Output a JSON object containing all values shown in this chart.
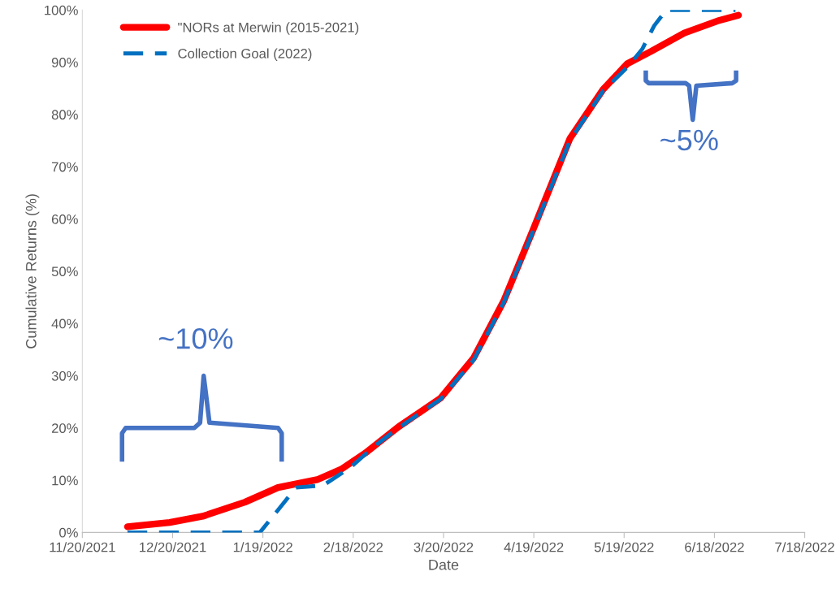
{
  "chart_data": {
    "type": "line",
    "xlabel": "Date",
    "ylabel": "Cumulative Returns (%)",
    "xlim": [
      "2021-11-20",
      "2022-07-18"
    ],
    "xticks": [
      {
        "value": "2021-11-20",
        "label": "11/20/2021"
      },
      {
        "value": "2021-12-20",
        "label": "12/20/2021"
      },
      {
        "value": "2022-01-19",
        "label": "1/19/2022"
      },
      {
        "value": "2022-02-18",
        "label": "2/18/2022"
      },
      {
        "value": "2022-03-20",
        "label": "3/20/2022"
      },
      {
        "value": "2022-04-19",
        "label": "4/19/2022"
      },
      {
        "value": "2022-05-19",
        "label": "5/19/2022"
      },
      {
        "value": "2022-06-18",
        "label": "6/18/2022"
      },
      {
        "value": "2022-07-18",
        "label": "7/18/2022"
      }
    ],
    "ylim": [
      0,
      100
    ],
    "yticks": [
      {
        "value": 0,
        "label": "0%"
      },
      {
        "value": 10,
        "label": "10%"
      },
      {
        "value": 20,
        "label": "20%"
      },
      {
        "value": 30,
        "label": "30%"
      },
      {
        "value": 40,
        "label": "40%"
      },
      {
        "value": 50,
        "label": "50%"
      },
      {
        "value": 60,
        "label": "60%"
      },
      {
        "value": 70,
        "label": "70%"
      },
      {
        "value": 80,
        "label": "80%"
      },
      {
        "value": 90,
        "label": "90%"
      },
      {
        "value": 100,
        "label": "100%"
      }
    ],
    "grid": false,
    "legend": "top left",
    "marker": "none",
    "series": [
      {
        "name": "\"NORs at Merwin (2015-2021)",
        "color": "#ff0000",
        "line_style": "solid",
        "x": [
          "2021-12-05",
          "2021-12-19",
          "2021-12-30",
          "2022-01-13",
          "2022-01-24",
          "2022-02-06",
          "2022-02-14",
          "2022-02-22",
          "2022-03-05",
          "2022-03-19",
          "2022-03-30",
          "2022-04-09",
          "2022-04-19",
          "2022-05-01",
          "2022-05-12",
          "2022-05-20",
          "2022-05-28",
          "2022-06-08",
          "2022-06-19",
          "2022-06-26"
        ],
        "values": [
          1.1,
          1.9,
          3.1,
          5.8,
          8.6,
          10.1,
          12.1,
          15.2,
          20.2,
          25.7,
          33.4,
          44.3,
          58.3,
          75.4,
          84.8,
          89.7,
          92.1,
          95.6,
          97.9,
          99
        ]
      },
      {
        "name": "Collection Goal (2022)",
        "color": "#0070c0",
        "line_style": "dashed",
        "x": [
          "2021-12-05",
          "2022-01-18",
          "2022-01-25",
          "2022-01-30",
          "2022-02-08",
          "2022-02-17",
          "2022-02-25",
          "2022-03-05",
          "2022-03-19",
          "2022-03-30",
          "2022-04-09",
          "2022-04-19",
          "2022-05-01",
          "2022-05-12",
          "2022-05-20",
          "2022-05-25",
          "2022-05-29",
          "2022-06-02",
          "2022-06-25"
        ],
        "values": [
          0,
          0,
          5,
          8.6,
          9,
          12.4,
          16.5,
          20,
          25.5,
          33,
          44,
          58,
          75,
          84.5,
          89,
          92.5,
          97,
          100,
          100
        ]
      }
    ],
    "annotations": [
      "~10%",
      "~5%"
    ]
  }
}
